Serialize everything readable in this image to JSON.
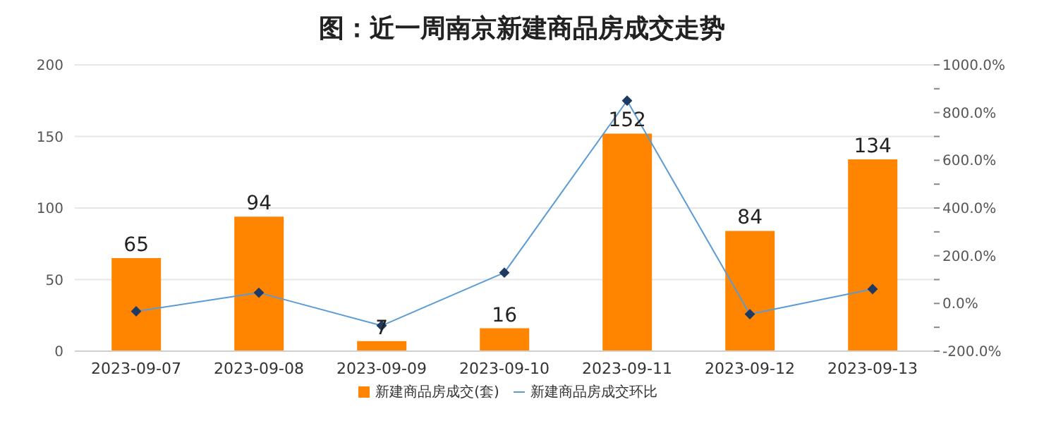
{
  "chart_data": {
    "type": "bar",
    "title": "图：近一周南京新建商品房成交走势",
    "categories": [
      "2023-09-07",
      "2023-09-08",
      "2023-09-09",
      "2023-09-10",
      "2023-09-11",
      "2023-09-12",
      "2023-09-13"
    ],
    "series": [
      {
        "name": "新建商品房成交(套)",
        "color": "#ff8400",
        "values": [
          65,
          94,
          7,
          16,
          152,
          84,
          134
        ],
        "value_labels": [
          "65",
          "94",
          "7",
          "16",
          "152",
          "84",
          "134"
        ]
      },
      {
        "name": "新建商品房成交环比",
        "type": "line",
        "axis": "y2",
        "color": "#5b9bd5",
        "marker": "diamond",
        "values": [
          -33,
          45,
          -93,
          129,
          850,
          -45,
          60
        ]
      }
    ],
    "ylim": [
      0,
      200
    ],
    "yticks": [
      0,
      50,
      100,
      150,
      200
    ],
    "y2lim": [
      -200,
      1000
    ],
    "y2ticks": [
      {
        "value": -200,
        "label": "-200.0%"
      },
      {
        "value": -100,
        "label": null
      },
      {
        "value": 0,
        "label": "0.0%"
      },
      {
        "value": 100,
        "label": null
      },
      {
        "value": 200,
        "label": "200.0%"
      },
      {
        "value": 300,
        "label": null
      },
      {
        "value": 400,
        "label": "400.0%"
      },
      {
        "value": 500,
        "label": null
      },
      {
        "value": 600,
        "label": "600.0%"
      },
      {
        "value": 700,
        "label": null
      },
      {
        "value": 800,
        "label": "800.0%"
      },
      {
        "value": 900,
        "label": null
      },
      {
        "value": 1000,
        "label": "1000.0%"
      }
    ],
    "grid": "y",
    "legend": "bottom"
  }
}
